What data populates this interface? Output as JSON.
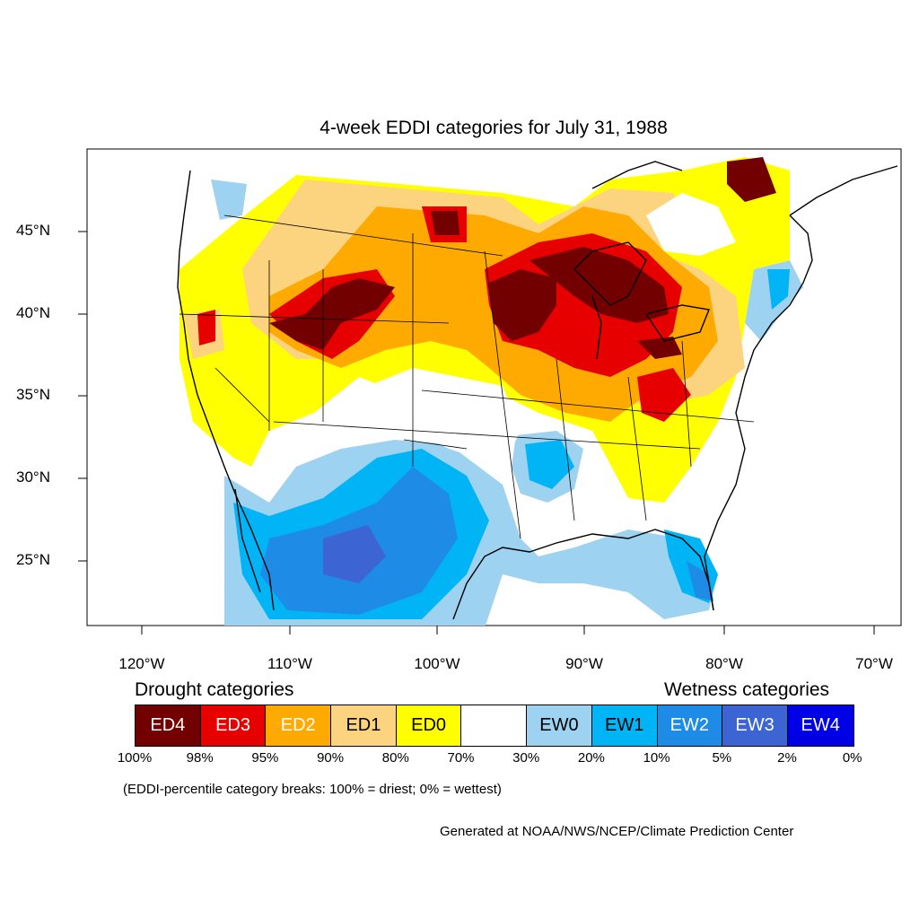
{
  "title": "4-week EDDI categories for July 31, 1988",
  "lat_labels": [
    "45°N",
    "40°N",
    "35°N",
    "30°N",
    "25°N"
  ],
  "lon_labels": [
    "120°W",
    "110°W",
    "100°W",
    "90°W",
    "80°W",
    "70°W"
  ],
  "legend": {
    "drought_heading": "Drought categories",
    "wetness_heading": "Wetness categories",
    "categories": [
      {
        "label": "ED4",
        "color": "#730000",
        "text_color": "#ffffff"
      },
      {
        "label": "ED3",
        "color": "#e60000",
        "text_color": "#ffffff"
      },
      {
        "label": "ED2",
        "color": "#ffaa00",
        "text_color": "#ffffff"
      },
      {
        "label": "ED1",
        "color": "#fcd37f",
        "text_color": "#000000"
      },
      {
        "label": "ED0",
        "color": "#ffff00",
        "text_color": "#000000"
      },
      {
        "label": "",
        "color": "#ffffff",
        "text_color": "#000000"
      },
      {
        "label": "EW0",
        "color": "#9dd2f0",
        "text_color": "#000000"
      },
      {
        "label": "EW1",
        "color": "#00b4f5",
        "text_color": "#000000"
      },
      {
        "label": "EW2",
        "color": "#1e8ce6",
        "text_color": "#ffffff"
      },
      {
        "label": "EW3",
        "color": "#3c64d2",
        "text_color": "#ffffff"
      },
      {
        "label": "EW4",
        "color": "#0000e6",
        "text_color": "#ffffff"
      }
    ],
    "breaks": [
      "100%",
      "98%",
      "95%",
      "90%",
      "80%",
      "70%",
      "30%",
      "20%",
      "10%",
      "5%",
      "2%",
      "0%"
    ]
  },
  "note": "(EDDI-percentile category breaks: 100% = driest; 0% = wettest)",
  "credit": "Generated at NOAA/NWS/NCEP/Climate Prediction Center"
}
